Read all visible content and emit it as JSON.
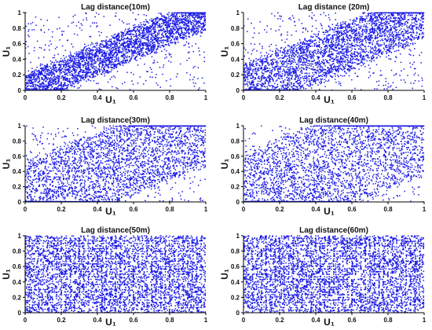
{
  "chart_data": [
    {
      "type": "scatter",
      "title": "Lag distance(10m)",
      "xlabel": "U₁",
      "ylabel": "U₁",
      "xlim": [
        0,
        1
      ],
      "ylim": [
        0,
        1
      ],
      "xticks": [
        "0",
        "0.2",
        "0.4",
        "0.6",
        "0.8",
        "1"
      ],
      "yticks": [
        "0",
        "0.2",
        "0.4",
        "0.6",
        "0.8",
        "1"
      ],
      "color": "#1a1ae6",
      "dependence": 0.82,
      "points": 3500
    },
    {
      "type": "scatter",
      "title": "Lag distance (20m)",
      "xlabel": "U₁",
      "ylabel": "U₁",
      "xlim": [
        0,
        1
      ],
      "ylim": [
        0,
        1
      ],
      "xticks": [
        "0",
        "0.2",
        "0.4",
        "0.6",
        "0.8",
        "1"
      ],
      "yticks": [
        "0",
        "0.2",
        "0.4",
        "0.6",
        "0.8",
        "1"
      ],
      "color": "#1a1ae6",
      "dependence": 0.72,
      "points": 3500
    },
    {
      "type": "scatter",
      "title": "Lag distance(30m)",
      "xlabel": "U₁",
      "ylabel": "U₁",
      "xlim": [
        0,
        1
      ],
      "ylim": [
        0,
        1
      ],
      "xticks": [
        "0",
        "0.2",
        "0.4",
        "0.6",
        "0.8",
        "1"
      ],
      "yticks": [
        "0",
        "0.2",
        "0.4",
        "0.6",
        "0.8",
        "1"
      ],
      "color": "#1a1ae6",
      "dependence": 0.55,
      "points": 3500
    },
    {
      "type": "scatter",
      "title": "Lag distance(40m)",
      "xlabel": "U₁",
      "ylabel": "U₁",
      "xlim": [
        0,
        1
      ],
      "ylim": [
        0,
        1
      ],
      "xticks": [
        "0",
        "0.2",
        "0.4",
        "0.6",
        "0.8",
        "1"
      ],
      "yticks": [
        "0",
        "0.2",
        "0.4",
        "0.6",
        "0.8",
        "1"
      ],
      "color": "#1a1ae6",
      "dependence": 0.45,
      "points": 3500
    },
    {
      "type": "scatter",
      "title": "Lag distance(50m)",
      "xlabel": "U₁",
      "ylabel": "U₁",
      "xlim": [
        0,
        1
      ],
      "ylim": [
        0,
        1
      ],
      "xticks": [
        "0",
        "0.2",
        "0.4",
        "0.6",
        "0.8",
        "1"
      ],
      "yticks": [
        "0",
        "0.2",
        "0.4",
        "0.6",
        "0.8",
        "1"
      ],
      "color": "#1a1ae6",
      "dependence": 0.08,
      "points": 4500
    },
    {
      "type": "scatter",
      "title": "Lag distance(60m)",
      "xlabel": "U₁",
      "ylabel": "U₁",
      "xlim": [
        0,
        1
      ],
      "ylim": [
        0,
        1
      ],
      "xticks": [
        "0",
        "0.2",
        "0.4",
        "0.6",
        "0.8",
        "1"
      ],
      "yticks": [
        "0",
        "0.2",
        "0.4",
        "0.6",
        "0.8",
        "1"
      ],
      "color": "#1a1ae6",
      "dependence": 0.05,
      "points": 4500
    }
  ]
}
